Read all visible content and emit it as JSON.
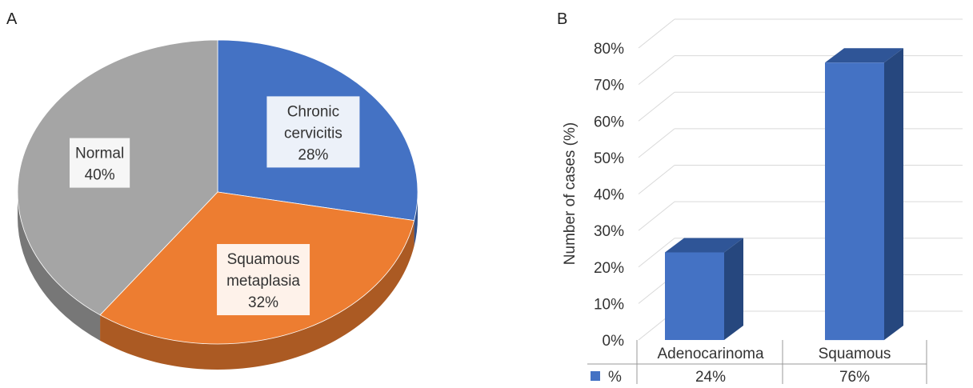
{
  "chart_data": [
    {
      "panel": "A",
      "type": "pie",
      "labels": [
        "Chronic cervicitis",
        "Squamous metaplasia",
        "Normal"
      ],
      "label_lines": [
        [
          "Chronic",
          "cervicitis"
        ],
        [
          "Squamous",
          "metaplasia"
        ],
        [
          "Normal"
        ]
      ],
      "values": [
        28,
        32,
        40
      ],
      "value_labels": [
        "28%",
        "32%",
        "40%"
      ],
      "colors": [
        "#4472c4",
        "#ed7d31",
        "#a5a5a5"
      ],
      "legend": "none"
    },
    {
      "panel": "B",
      "type": "bar",
      "categories": [
        "Adenocarinoma",
        "Squamous"
      ],
      "series": [
        {
          "name": "%",
          "values": [
            24,
            76
          ],
          "color": "#4472c4"
        }
      ],
      "data_table_values": [
        "24%",
        "76%"
      ],
      "ylabel": "Number of cases (%)",
      "ylim": [
        0,
        80
      ],
      "yticks": [
        "0%",
        "10%",
        "20%",
        "30%",
        "40%",
        "50%",
        "60%",
        "70%",
        "80%"
      ],
      "grid": true
    }
  ]
}
